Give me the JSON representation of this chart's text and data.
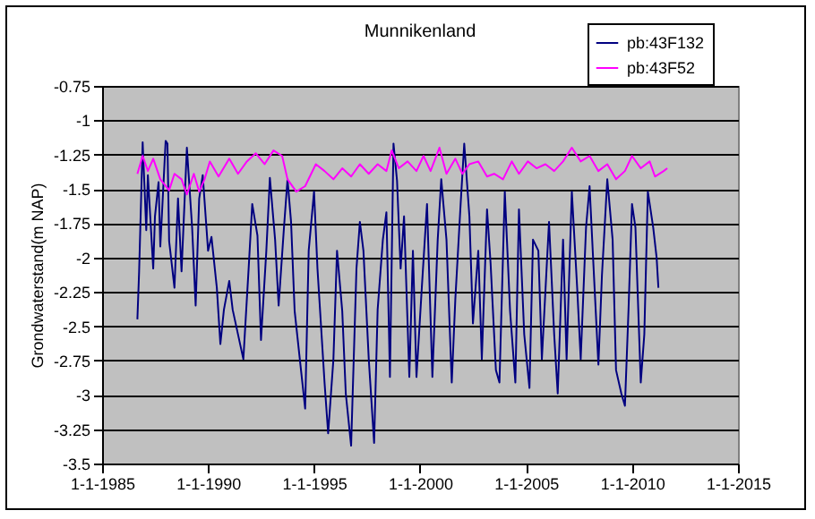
{
  "chart_data": {
    "type": "line",
    "title": "Munnikenland",
    "ylabel": "Grondwaterstand(m NAP)",
    "xlim": [
      "1985-01-01",
      "2015-01-01"
    ],
    "xticks": [
      {
        "value": "1985-01-01",
        "label": "1-1-1985"
      },
      {
        "value": "1990-01-01",
        "label": "1-1-1990"
      },
      {
        "value": "1995-01-01",
        "label": "1-1-1995"
      },
      {
        "value": "2000-01-01",
        "label": "1-1-2000"
      },
      {
        "value": "2005-01-01",
        "label": "1-1-2005"
      },
      {
        "value": "2010-01-01",
        "label": "1-1-2010"
      },
      {
        "value": "2015-01-01",
        "label": "1-1-2015"
      }
    ],
    "ylim": [
      -3.5,
      -0.75
    ],
    "yticks": [
      -3.5,
      -3.25,
      -3,
      -2.75,
      -2.5,
      -2.25,
      -2,
      -1.75,
      -1.5,
      -1.25,
      -1,
      -0.75
    ],
    "grid": "y",
    "legend": "top right",
    "series": [
      {
        "name": "pb:43F132",
        "color": "#000080",
        "x": [
          "1986-09",
          "1986-10",
          "1986-12",
          "1987-02",
          "1987-03",
          "1987-06",
          "1987-07",
          "1987-09",
          "1987-10",
          "1988-01",
          "1988-02",
          "1988-03",
          "1988-06",
          "1988-08",
          "1988-10",
          "1989-01",
          "1989-04",
          "1989-06",
          "1989-08",
          "1989-10",
          "1990-01",
          "1990-03",
          "1990-06",
          "1990-08",
          "1990-10",
          "1991-01",
          "1991-03",
          "1991-09",
          "1991-12",
          "1992-02",
          "1992-05",
          "1992-07",
          "1992-10",
          "1992-12",
          "1993-03",
          "1993-05",
          "1993-08",
          "1993-10",
          "1993-12",
          "1994-02",
          "1994-05",
          "1994-08",
          "1994-10",
          "1995-01",
          "1995-03",
          "1995-07",
          "1995-09",
          "1995-12",
          "1996-02",
          "1996-05",
          "1996-07",
          "1996-10",
          "1997-01",
          "1997-03",
          "1997-05",
          "1997-08",
          "1997-11",
          "1998-01",
          "1998-04",
          "1998-06",
          "1998-08",
          "1998-10",
          "1998-12",
          "1999-02",
          "1999-04",
          "1999-07",
          "1999-09",
          "1999-11",
          "2000-02",
          "2000-05",
          "2000-08",
          "2000-11",
          "2001-01",
          "2001-04",
          "2001-07",
          "2001-09",
          "2001-12",
          "2002-02",
          "2002-05",
          "2002-07",
          "2002-10",
          "2002-12",
          "2003-03",
          "2003-05",
          "2003-08",
          "2003-10",
          "2004-01",
          "2004-04",
          "2004-07",
          "2004-09",
          "2004-12",
          "2005-03",
          "2005-05",
          "2005-08",
          "2005-10",
          "2006-02",
          "2006-05",
          "2006-07",
          "2006-10",
          "2006-12",
          "2007-03",
          "2007-06",
          "2007-08",
          "2007-11",
          "2008-01",
          "2008-03",
          "2008-06",
          "2008-08",
          "2008-11",
          "2009-02",
          "2009-04",
          "2009-07",
          "2009-09",
          "2009-11",
          "2010-01",
          "2010-03",
          "2010-06",
          "2010-08",
          "2010-10",
          "2011-01",
          "2011-03",
          "2011-04"
        ],
        "values": [
          -2.45,
          -2.1,
          -1.16,
          -1.8,
          -1.4,
          -2.08,
          -1.7,
          -1.45,
          -1.92,
          -1.15,
          -1.17,
          -1.88,
          -2.22,
          -1.57,
          -2.1,
          -1.2,
          -1.78,
          -2.35,
          -1.57,
          -1.4,
          -1.95,
          -1.85,
          -2.22,
          -2.63,
          -2.38,
          -2.17,
          -2.38,
          -2.74,
          -2.08,
          -1.61,
          -1.84,
          -2.6,
          -1.95,
          -1.42,
          -1.87,
          -2.35,
          -1.78,
          -1.43,
          -1.74,
          -2.39,
          -2.74,
          -3.1,
          -1.95,
          -1.52,
          -2.08,
          -2.91,
          -3.28,
          -2.74,
          -1.95,
          -2.39,
          -2.99,
          -3.37,
          -2.08,
          -1.74,
          -1.95,
          -2.74,
          -3.35,
          -2.38,
          -1.87,
          -1.67,
          -2.87,
          -1.17,
          -1.44,
          -2.08,
          -1.7,
          -2.87,
          -1.95,
          -2.87,
          -2.22,
          -1.61,
          -2.87,
          -1.87,
          -1.43,
          -1.87,
          -2.91,
          -2.3,
          -1.61,
          -1.17,
          -1.7,
          -2.48,
          -1.95,
          -2.74,
          -1.65,
          -2.04,
          -2.82,
          -2.91,
          -1.52,
          -2.39,
          -2.91,
          -1.65,
          -2.56,
          -2.95,
          -1.87,
          -1.95,
          -2.74,
          -1.74,
          -2.56,
          -2.99,
          -1.87,
          -2.74,
          -1.52,
          -2.22,
          -2.74,
          -1.78,
          -1.48,
          -2,
          -2.78,
          -2.13,
          -1.43,
          -1.87,
          -2.82,
          -2.99,
          -3.08,
          -2.39,
          -1.61,
          -1.78,
          -2.91,
          -2.56,
          -1.52,
          -1.78,
          -2,
          -2.22
        ]
      },
      {
        "name": "pb:43F52",
        "color": "#ff00ff",
        "x": [
          "1986-09",
          "1986-12",
          "1987-03",
          "1987-06",
          "1987-10",
          "1988-03",
          "1988-06",
          "1988-10",
          "1989-01",
          "1989-05",
          "1989-08",
          "1989-11",
          "1990-02",
          "1990-07",
          "1991-01",
          "1991-06",
          "1991-11",
          "1992-04",
          "1992-09",
          "1993-02",
          "1993-07",
          "1993-10",
          "1994-03",
          "1994-08",
          "1995-02",
          "1995-07",
          "1995-12",
          "1996-05",
          "1996-10",
          "1997-03",
          "1997-08",
          "1998-01",
          "1998-06",
          "1998-09",
          "1999-01",
          "1999-06",
          "1999-11",
          "2000-03",
          "2000-07",
          "2000-12",
          "2001-04",
          "2001-09",
          "2002-01",
          "2002-05",
          "2002-10",
          "2003-03",
          "2003-07",
          "2003-12",
          "2004-05",
          "2004-09",
          "2005-02",
          "2005-07",
          "2005-12",
          "2006-05",
          "2006-10",
          "2007-03",
          "2007-08",
          "2008-01",
          "2008-06",
          "2008-11",
          "2009-04",
          "2009-09",
          "2010-01",
          "2010-06",
          "2010-11",
          "2011-02",
          "2011-07",
          "2011-09"
        ],
        "values": [
          -1.39,
          -1.26,
          -1.37,
          -1.28,
          -1.43,
          -1.51,
          -1.39,
          -1.43,
          -1.54,
          -1.39,
          -1.52,
          -1.43,
          -1.3,
          -1.41,
          -1.28,
          -1.39,
          -1.3,
          -1.24,
          -1.32,
          -1.22,
          -1.26,
          -1.43,
          -1.52,
          -1.48,
          -1.32,
          -1.37,
          -1.43,
          -1.35,
          -1.41,
          -1.32,
          -1.39,
          -1.32,
          -1.37,
          -1.22,
          -1.35,
          -1.3,
          -1.37,
          -1.26,
          -1.37,
          -1.2,
          -1.39,
          -1.28,
          -1.39,
          -1.32,
          -1.3,
          -1.41,
          -1.39,
          -1.43,
          -1.3,
          -1.39,
          -1.3,
          -1.35,
          -1.32,
          -1.37,
          -1.3,
          -1.2,
          -1.3,
          -1.26,
          -1.37,
          -1.32,
          -1.43,
          -1.37,
          -1.26,
          -1.35,
          -1.3,
          -1.41,
          -1.37,
          -1.35
        ]
      }
    ]
  }
}
